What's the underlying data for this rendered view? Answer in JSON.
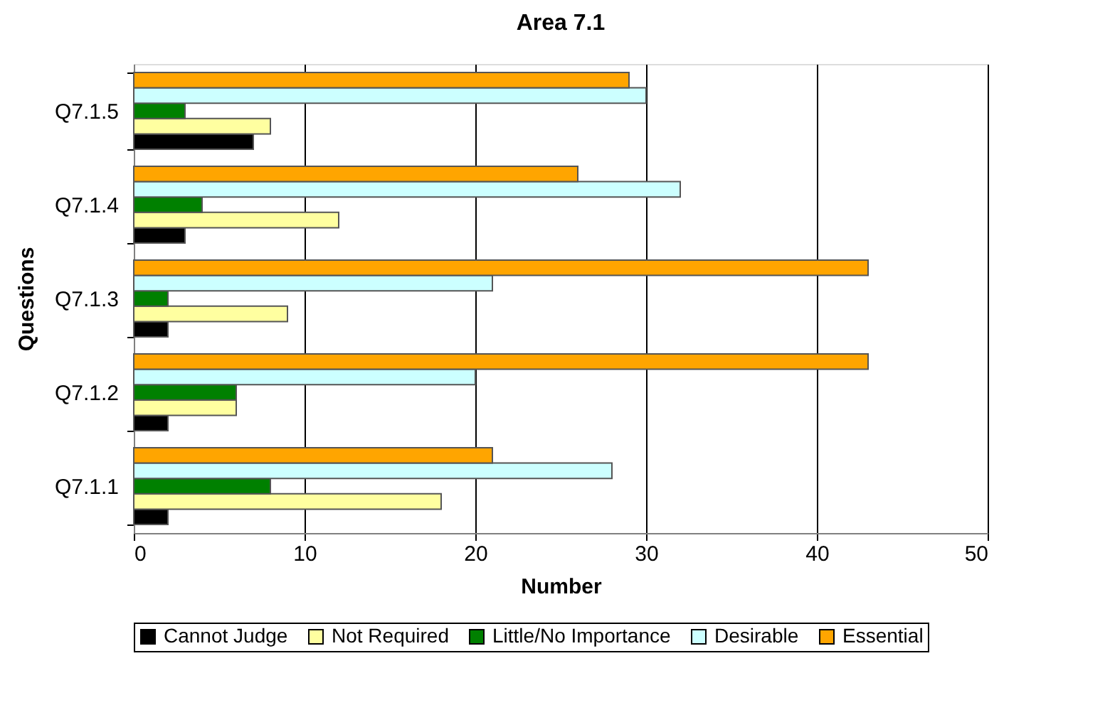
{
  "chart_data": {
    "type": "bar",
    "orientation": "horizontal",
    "title": "Area 7.1",
    "xlabel": "Number",
    "ylabel": "Questions",
    "categories": [
      "Q7.1.5",
      "Q7.1.4",
      "Q7.1.3",
      "Q7.1.2",
      "Q7.1.1"
    ],
    "series": [
      {
        "name": "Cannot Judge",
        "color": "#000000",
        "values": [
          7,
          3,
          2,
          2,
          2
        ]
      },
      {
        "name": "Not Required",
        "color": "#ffffa0",
        "values": [
          8,
          12,
          9,
          6,
          18
        ]
      },
      {
        "name": "Little/No Importance",
        "color": "#008000",
        "values": [
          3,
          4,
          2,
          6,
          8
        ]
      },
      {
        "name": "Desirable",
        "color": "#ccffff",
        "values": [
          30,
          32,
          21,
          20,
          28
        ]
      },
      {
        "name": "Essential",
        "color": "#ffa500",
        "values": [
          29,
          26,
          43,
          43,
          21
        ]
      }
    ],
    "xlim": [
      0,
      50
    ],
    "xticks": [
      0,
      10,
      20,
      30,
      40,
      50
    ],
    "grid": "x",
    "legend": "bottom"
  }
}
